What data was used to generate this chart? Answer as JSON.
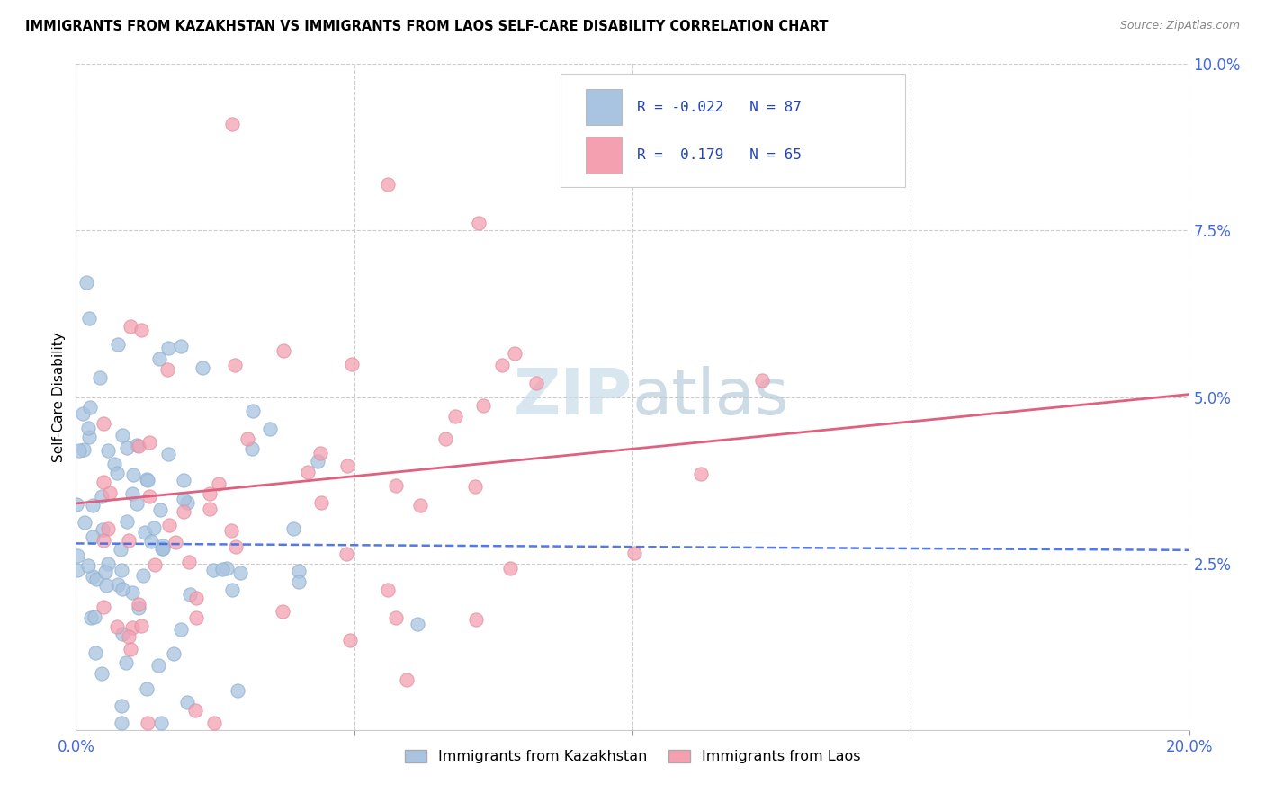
{
  "title": "IMMIGRANTS FROM KAZAKHSTAN VS IMMIGRANTS FROM LAOS SELF-CARE DISABILITY CORRELATION CHART",
  "source": "Source: ZipAtlas.com",
  "ylabel": "Self-Care Disability",
  "xlim": [
    0.0,
    0.2
  ],
  "ylim": [
    0.0,
    0.1
  ],
  "xticks": [
    0.0,
    0.05,
    0.1,
    0.15,
    0.2
  ],
  "xtick_labels": [
    "0.0%",
    "",
    "",
    "",
    "20.0%"
  ],
  "yticks": [
    0.0,
    0.025,
    0.05,
    0.075,
    0.1
  ],
  "ytick_labels": [
    "",
    "2.5%",
    "5.0%",
    "7.5%",
    "10.0%"
  ],
  "grid_color": "#cccccc",
  "background_color": "#ffffff",
  "color_kaz": "#a8c4e0",
  "color_laos": "#f4a0b0",
  "line_color_kaz": "#4169E1",
  "line_color_laos": "#e06080",
  "tick_color": "#4169E1",
  "R_kaz": -0.022,
  "N_kaz": 87,
  "R_laos": 0.179,
  "N_laos": 65,
  "watermark_zip": "ZIP",
  "watermark_atlas": "atlas",
  "kaz_intercept": 0.028,
  "kaz_slope": -0.005,
  "laos_intercept": 0.034,
  "laos_slope": 0.082,
  "legend_label_kaz": "Immigrants from Kazakhstan",
  "legend_label_laos": "Immigrants from Laos"
}
